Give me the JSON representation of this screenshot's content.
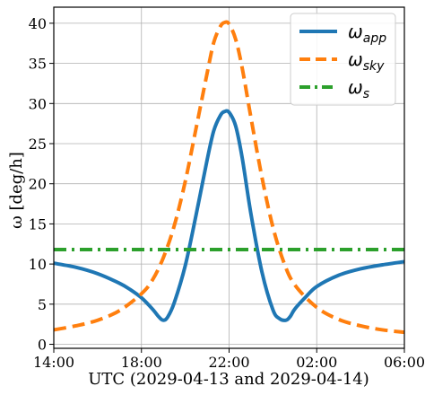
{
  "chart_data": {
    "type": "line",
    "xlabel": "UTC (2029-04-13 and 2029-04-14)",
    "ylabel": "ω [deg/h]",
    "x_ticks": [
      {
        "value": 14,
        "label": "14:00"
      },
      {
        "value": 18,
        "label": "18:00"
      },
      {
        "value": 22,
        "label": "22:00"
      },
      {
        "value": 26,
        "label": "02:00"
      },
      {
        "value": 30,
        "label": "06:00"
      }
    ],
    "xlim": [
      14,
      30
    ],
    "y_ticks": [
      0,
      5,
      10,
      15,
      20,
      25,
      30,
      35,
      40
    ],
    "ylim": [
      -0.5,
      42
    ],
    "grid": true,
    "legend_position": "top-right",
    "series": [
      {
        "name": "ωapp",
        "legend_main": "ω",
        "legend_sub": "app",
        "color": "#1f77b4",
        "style": "solid",
        "x": [
          14,
          15,
          16,
          17,
          17.5,
          18,
          18.5,
          18.8,
          19,
          19.2,
          19.5,
          20,
          20.5,
          21,
          21.3,
          21.6,
          21.8,
          22,
          22.3,
          22.6,
          23,
          23.5,
          24,
          24.3,
          24.6,
          24.8,
          25,
          25.5,
          26,
          27,
          28,
          29,
          30
        ],
        "y": [
          10.1,
          9.6,
          8.8,
          7.6,
          6.8,
          5.8,
          4.4,
          3.4,
          3.0,
          3.4,
          5.2,
          9.8,
          16.2,
          23.0,
          26.6,
          28.5,
          29.0,
          28.9,
          27.2,
          23.2,
          16.2,
          9.0,
          4.3,
          3.2,
          3.0,
          3.5,
          4.4,
          5.9,
          7.2,
          8.6,
          9.4,
          9.9,
          10.3
        ]
      },
      {
        "name": "ωsky",
        "legend_main": "ω",
        "legend_sub": "sky",
        "color": "#ff7f0e",
        "style": "dashed",
        "x": [
          14,
          15,
          16,
          17,
          18,
          18.5,
          19,
          19.5,
          20,
          20.5,
          21,
          21.3,
          21.6,
          21.8,
          22,
          22.3,
          22.6,
          23,
          23.5,
          24,
          24.5,
          25,
          26,
          27,
          28,
          29,
          30
        ],
        "y": [
          1.8,
          2.3,
          3.0,
          4.2,
          6.3,
          8.0,
          10.8,
          14.8,
          20.3,
          27.0,
          33.8,
          37.6,
          39.6,
          40.1,
          39.9,
          38.0,
          34.4,
          28.2,
          20.8,
          14.6,
          10.2,
          7.4,
          4.6,
          3.1,
          2.3,
          1.8,
          1.5
        ]
      },
      {
        "name": "ωs",
        "legend_main": "ω",
        "legend_sub": "s",
        "color": "#2ca02c",
        "style": "dashdot",
        "x": [
          14,
          30
        ],
        "y": [
          11.8,
          11.8
        ]
      }
    ]
  }
}
